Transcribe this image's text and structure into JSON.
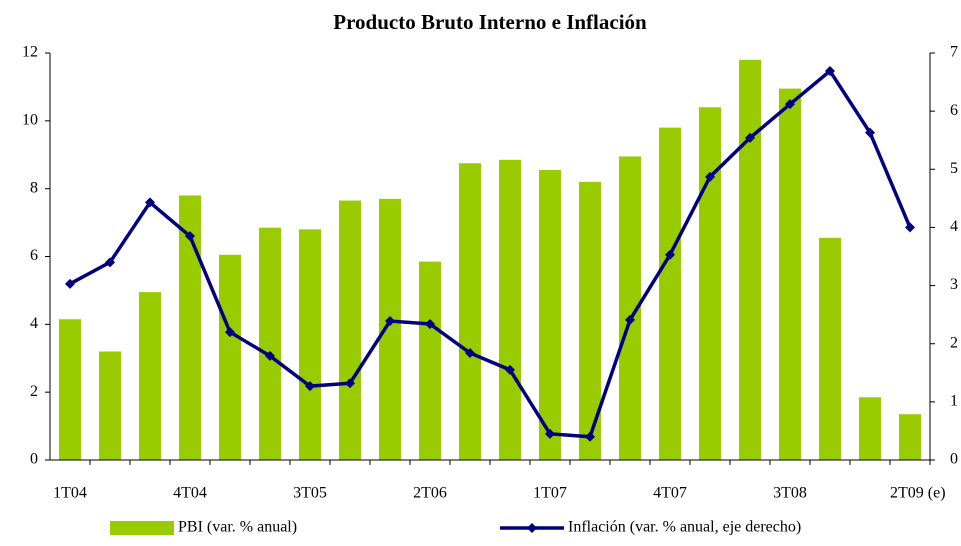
{
  "chart_data": {
    "type": "bar_line",
    "title": "Producto Bruto Interno e Inflación",
    "categories": [
      "1T04",
      null,
      null,
      "4T04",
      null,
      null,
      "3T05",
      null,
      null,
      "2T06",
      null,
      null,
      "1T07",
      null,
      null,
      "4T07",
      null,
      null,
      "3T08",
      null,
      null,
      "2T09 (e)"
    ],
    "series": [
      {
        "name": "PBI (var. % anual)",
        "type": "bar",
        "color": "#99cc00",
        "axis": "y",
        "values": [
          4.15,
          3.2,
          4.95,
          7.8,
          6.05,
          6.85,
          6.8,
          7.65,
          7.7,
          5.85,
          8.75,
          8.85,
          8.55,
          8.2,
          8.95,
          9.8,
          10.4,
          11.8,
          10.95,
          6.55,
          1.85,
          1.35
        ]
      },
      {
        "name": "Inflación (var. % anual, eje derecho)",
        "type": "line",
        "color": "#000080",
        "axis": "y2",
        "values": [
          3.03,
          3.4,
          4.43,
          3.85,
          2.2,
          1.79,
          1.27,
          1.32,
          2.39,
          2.34,
          1.84,
          1.55,
          0.45,
          0.4,
          2.41,
          3.53,
          4.87,
          5.54,
          6.12,
          6.69,
          5.63,
          4.0
        ]
      }
    ],
    "ylim": [
      0,
      12
    ],
    "yticks": [
      0,
      2,
      4,
      6,
      8,
      10,
      12
    ],
    "y2lim": [
      0,
      7
    ],
    "y2ticks": [
      0,
      1,
      2,
      3,
      4,
      5,
      6,
      7
    ],
    "legend": "bottom"
  }
}
